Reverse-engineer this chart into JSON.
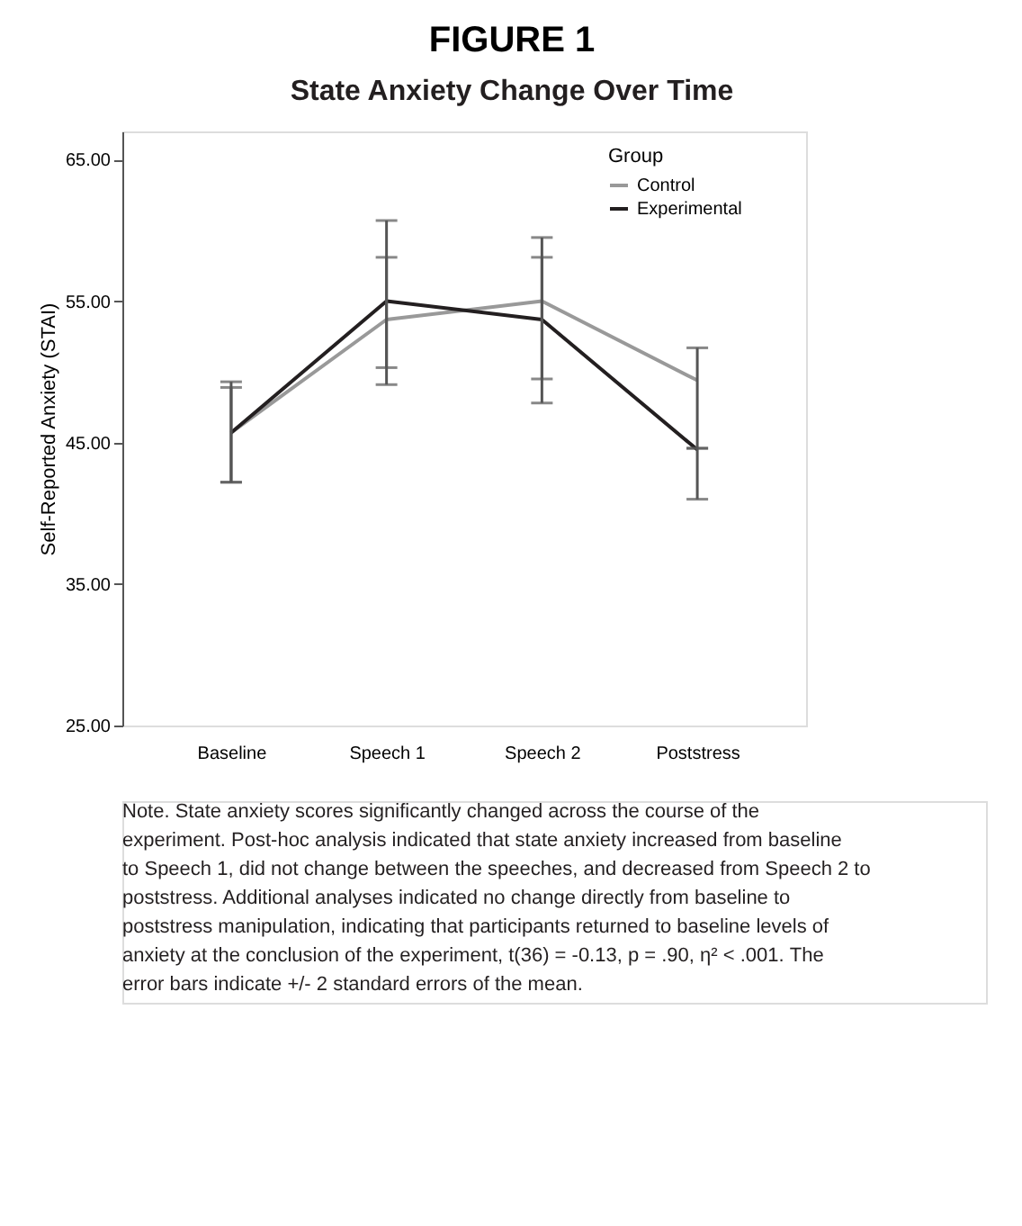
{
  "chart_data": {
    "type": "line",
    "title": "FIGURE 1",
    "subtitle": "State Anxiety Change Over Time",
    "ylabel": "Self-Reported Anxiety (STAI)",
    "legend_title": "Group",
    "legend": "top right",
    "grid": false,
    "marker": "none",
    "line_style": "solid",
    "categories": [
      "Baseline",
      "Speech 1",
      "Speech 2",
      "Poststress"
    ],
    "ylim": [
      25,
      67
    ],
    "yticks": [
      {
        "value": 25,
        "label": "25.00"
      },
      {
        "value": 35,
        "label": "35.00"
      },
      {
        "value": 45,
        "label": "45.00"
      },
      {
        "value": 55,
        "label": "55.00"
      },
      {
        "value": 65,
        "label": "65.00"
      }
    ],
    "series": [
      {
        "name": "Control",
        "color": "#999999",
        "values": [
          45.7,
          53.7,
          55.0,
          49.4
        ],
        "errors": [
          [
            42.2,
            48.9
          ],
          [
            50.3,
            58.1
          ],
          [
            49.5,
            58.1
          ],
          [
            44.6,
            51.7
          ]
        ]
      },
      {
        "name": "Experimental",
        "color": "#231f20",
        "values": [
          45.7,
          55.0,
          53.7,
          44.5
        ],
        "errors": [
          [
            42.2,
            49.3
          ],
          [
            49.1,
            60.7
          ],
          [
            47.8,
            59.5
          ],
          [
            41.0,
            44.6
          ]
        ]
      }
    ],
    "annotations": [
      "Note. State anxiety scores significantly changed across the course of the experiment. Post-hoc analysis indicated that state anxiety increased from baseline to Speech 1, did not change between the speeches, and decreased from Speech 2 to poststress. Additional analyses indicated no change directly from baseline to poststress manipulation, indicating that participants returned to baseline levels of anxiety at the conclusion of the experiment, t(36) = -0.13, p = .90, η² < .001. The error bars indicate +/- 2 standard errors of the mean."
    ]
  }
}
